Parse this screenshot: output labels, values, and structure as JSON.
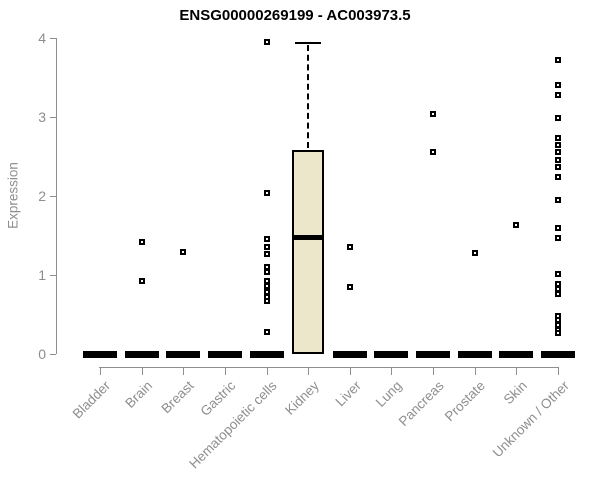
{
  "title": "ENSG00000269199 - AC003973.5",
  "colors": {
    "box_fill": "#ece7ca",
    "box_border": "#000000",
    "median": "#000000",
    "point_border": "#000000",
    "point_fill": "#ffffff",
    "axis": "#8e8e8e",
    "title": "#000000",
    "background": "#ffffff"
  },
  "chart_data": {
    "type": "boxplot",
    "title": "ENSG00000269199 - AC003973.5",
    "xlabel": "",
    "ylabel": "Expression",
    "ylim": [
      0,
      4
    ],
    "y_ticks": [
      0,
      1,
      2,
      3,
      4
    ],
    "grid": false,
    "legend": false,
    "categories": [
      "Bladder",
      "Brain",
      "Breast",
      "Gastric",
      "Hematopoietic cells",
      "Kidney",
      "Liver",
      "Lung",
      "Pancreas",
      "Prostate",
      "Skin",
      "Unknown / Other"
    ],
    "series": [
      {
        "name": "Bladder",
        "box": {
          "whisker_low": 0,
          "q1": 0,
          "median": 0,
          "q3": 0,
          "whisker_high": 0
        },
        "outliers": []
      },
      {
        "name": "Brain",
        "box": {
          "whisker_low": 0,
          "q1": 0,
          "median": 0,
          "q3": 0,
          "whisker_high": 0
        },
        "outliers": [
          1.42,
          0.92
        ]
      },
      {
        "name": "Breast",
        "box": {
          "whisker_low": 0,
          "q1": 0,
          "median": 0,
          "q3": 0,
          "whisker_high": 0
        },
        "outliers": [
          1.29
        ]
      },
      {
        "name": "Gastric",
        "box": {
          "whisker_low": 0,
          "q1": 0,
          "median": 0,
          "q3": 0,
          "whisker_high": 0
        },
        "outliers": []
      },
      {
        "name": "Hematopoietic cells",
        "box": {
          "whisker_low": 0,
          "q1": 0,
          "median": 0,
          "q3": 0,
          "whisker_high": 0
        },
        "outliers": [
          3.95,
          2.04,
          1.45,
          1.35,
          1.27,
          1.1,
          1.04,
          0.92,
          0.86,
          0.79,
          0.72,
          0.67,
          0.28
        ]
      },
      {
        "name": "Kidney",
        "box": {
          "whisker_low": 0,
          "q1": 0,
          "median": 1.48,
          "q3": 2.58,
          "whisker_high": 3.94
        },
        "outliers": []
      },
      {
        "name": "Liver",
        "box": {
          "whisker_low": 0,
          "q1": 0,
          "median": 0,
          "q3": 0,
          "whisker_high": 0
        },
        "outliers": [
          1.36,
          0.85
        ]
      },
      {
        "name": "Lung",
        "box": {
          "whisker_low": 0,
          "q1": 0,
          "median": 0,
          "q3": 0,
          "whisker_high": 0
        },
        "outliers": []
      },
      {
        "name": "Pancreas",
        "box": {
          "whisker_low": 0,
          "q1": 0,
          "median": 0,
          "q3": 0,
          "whisker_high": 0
        },
        "outliers": [
          3.04,
          2.56
        ]
      },
      {
        "name": "Prostate",
        "box": {
          "whisker_low": 0,
          "q1": 0,
          "median": 0,
          "q3": 0,
          "whisker_high": 0
        },
        "outliers": [
          1.28
        ]
      },
      {
        "name": "Skin",
        "box": {
          "whisker_low": 0,
          "q1": 0,
          "median": 0,
          "q3": 0,
          "whisker_high": 0
        },
        "outliers": [
          1.63
        ]
      },
      {
        "name": "Unknown / Other",
        "box": {
          "whisker_low": 0,
          "q1": 0,
          "median": 0,
          "q3": 0,
          "whisker_high": 0
        },
        "outliers": [
          3.72,
          3.4,
          3.28,
          2.99,
          2.74,
          2.64,
          2.56,
          2.45,
          2.37,
          2.24,
          1.95,
          1.59,
          1.47,
          1.01,
          0.88,
          0.82,
          0.76,
          0.48,
          0.43,
          0.37,
          0.31,
          0.26
        ]
      }
    ]
  }
}
